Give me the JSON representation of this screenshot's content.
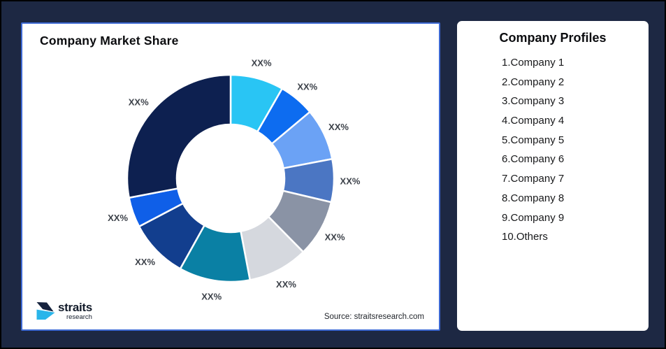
{
  "window": {
    "background_color": "#1d2843",
    "frame_border_color": "#000000"
  },
  "chart_card": {
    "title": "Company Market Share",
    "source": "Source: straitsresearch.com",
    "border_color": "#3d69d3",
    "logo": {
      "brand": "straits",
      "sub": "research",
      "mark_dark_color": "#16233e",
      "mark_cyan_color": "#2ab5ea"
    }
  },
  "profiles_card": {
    "title": "Company Profiles",
    "items": [
      "1.Company 1",
      "2.Company 2",
      "3.Company 3",
      "4.Company 4",
      "5.Company 5",
      "6.Company 6",
      "7.Company 7",
      "8.Company 8",
      "9.Company 9",
      "10.Others"
    ]
  },
  "chart_data": {
    "type": "pie",
    "subtype": "donut",
    "title": "Company Market Share",
    "note": "All slice value labels are masked as XX% in the source image; share_pct_est is estimated from slice arc angles",
    "legend_position": "none",
    "geometry": {
      "start_angle_deg": 0,
      "direction": "clockwise",
      "inner_radius_ratio": 0.52,
      "label_text_color": "#3d424a",
      "slice_gap_color": "#ffffff"
    },
    "segments": [
      {
        "name": "Company 1",
        "label": "XX%",
        "share_pct_est": 8.3,
        "color": "#29c5f4"
      },
      {
        "name": "Company 2",
        "label": "XX%",
        "share_pct_est": 5.6,
        "color": "#0d6cf0"
      },
      {
        "name": "Company 3",
        "label": "XX%",
        "share_pct_est": 8.1,
        "color": "#6ba2f5"
      },
      {
        "name": "Company 4",
        "label": "XX%",
        "share_pct_est": 6.7,
        "color": "#4b76c3"
      },
      {
        "name": "Company 5",
        "label": "XX%",
        "share_pct_est": 8.9,
        "color": "#8a93a5"
      },
      {
        "name": "Company 6",
        "label": "XX%",
        "share_pct_est": 9.4,
        "color": "#d5d8de"
      },
      {
        "name": "Company 7",
        "label": "XX%",
        "share_pct_est": 11.1,
        "color": "#0a80a4"
      },
      {
        "name": "Company 8",
        "label": "XX%",
        "share_pct_est": 9.2,
        "color": "#123e8e"
      },
      {
        "name": "Company 9",
        "label": "XX%",
        "share_pct_est": 4.7,
        "color": "#0f5fe8"
      },
      {
        "name": "Others",
        "label": "XX%",
        "share_pct_est": 28.0,
        "color": "#0d2050"
      }
    ]
  }
}
